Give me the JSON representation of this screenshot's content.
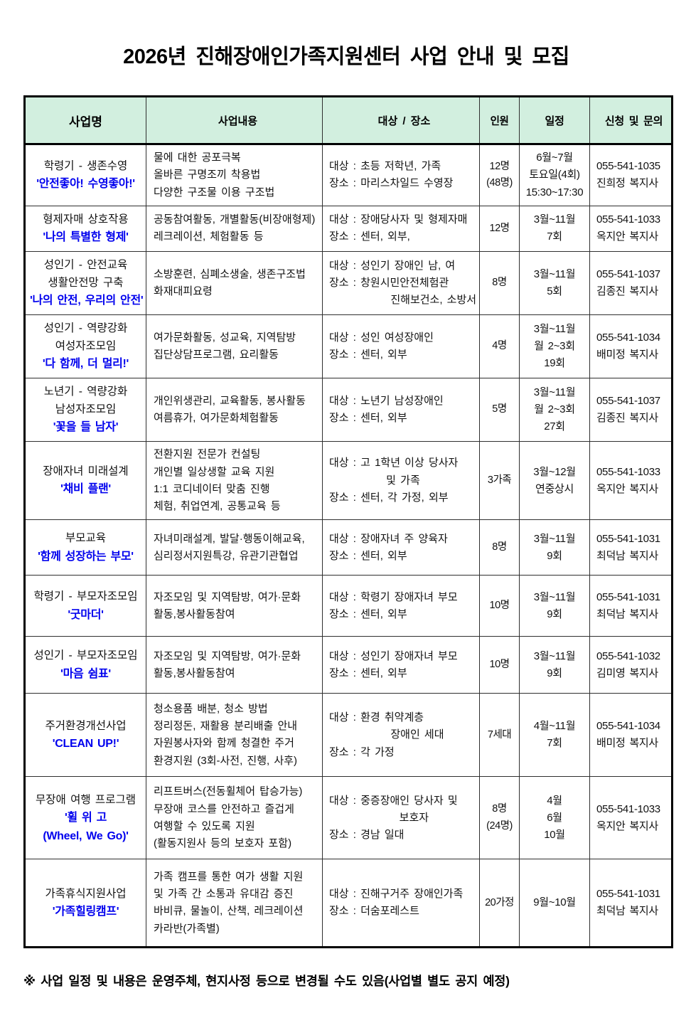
{
  "title": "2026년 진해장애인가족지원센터 사업 안내 및 모집",
  "colors": {
    "header_bg": "#d2efdf",
    "accent_blue": "#0000ee",
    "border_dark": "#000000"
  },
  "table": {
    "headers": [
      "사업명",
      "사업내용",
      "대상 / 장소",
      "인원",
      "일정",
      "신청 및 문의"
    ]
  },
  "rows": [
    {
      "name": [
        "학령기 - 생존수영"
      ],
      "slogan": [
        "'안전좋아! 수영좋아!'"
      ],
      "content": [
        "물에 대한 공포극복",
        "올바른 구명조끼 착용법",
        "다양한 구조물 이용 구조법"
      ],
      "target": [
        "대상 : 초등 저학년, 가족",
        "장소 : 마리스차일드 수영장"
      ],
      "personnel": [
        "12명",
        "(48명)"
      ],
      "schedule": [
        "6월~7월",
        "토요일(4회)",
        "15:30~17:30"
      ],
      "contact": [
        "055-541-1035",
        "진희정 복지사"
      ]
    },
    {
      "name": [
        "형제자매 상호작용"
      ],
      "slogan": [
        "'나의 특별한 형제'"
      ],
      "content": [
        "공동참여활동, 개별활동(비장애형제)",
        "레크레이션, 체험활동 등"
      ],
      "target": [
        "대상 : 장애당사자 및 형제자매",
        "장소 : 센터, 외부,"
      ],
      "personnel": [
        "12명"
      ],
      "schedule": [
        "3월~11월",
        "7회"
      ],
      "contact": [
        "055-541-1033",
        "옥지안 복지사"
      ]
    },
    {
      "name": [
        "성인기 - 안전교육",
        "생활안전망 구축"
      ],
      "slogan": [
        "'나의 안전, 우리의 안전'"
      ],
      "content": [
        "소방훈련, 심폐소생술, 생존구조법",
        "화재대피요령"
      ],
      "target": [
        "대상 : 성인기 장애인 남, 여",
        "장소 : 창원시민안전체험관",
        "              진해보건소, 소방서"
      ],
      "personnel": [
        "8명"
      ],
      "schedule": [
        "3월~11월",
        "5회"
      ],
      "contact": [
        "055-541-1037",
        "김종진 복지사"
      ]
    },
    {
      "name": [
        "성인기 - 역량강화",
        "여성자조모임"
      ],
      "slogan": [
        "'다 함께, 더 멀리!'"
      ],
      "content": [
        "여가문화활동, 성교육, 지역탐방",
        "집단상담프로그램, 요리활동"
      ],
      "target": [
        "대상 : 성인 여성장애인",
        "장소 : 센터, 외부"
      ],
      "personnel": [
        "4명"
      ],
      "schedule": [
        "3월~11월",
        "월 2~3회",
        "19회"
      ],
      "contact": [
        "055-541-1034",
        "배미정 복지사"
      ]
    },
    {
      "name": [
        "노년기 - 역량강화",
        "남성자조모임"
      ],
      "slogan": [
        "'꽃을 들 남자'"
      ],
      "content": [
        "개인위생관리, 교육활동, 봉사활동",
        "여름휴가, 여가문화체험활동"
      ],
      "target": [
        "대상 : 노년기 남성장애인",
        "장소 : 센터, 외부"
      ],
      "personnel": [
        "5명"
      ],
      "schedule": [
        "3월~11월",
        "월 2~3회",
        "27회"
      ],
      "contact": [
        "055-541-1037",
        "김종진 복지사"
      ]
    },
    {
      "name": [
        "장애자녀 미래설계"
      ],
      "slogan": [
        "'채비 플랜'"
      ],
      "content": [
        "전환지원 전문가 컨설팅",
        "개인별 일상생할 교육 지원",
        "1:1 코디네이터 맞춤 진행",
        "체험, 취업연계, 공통교육 등"
      ],
      "target": [
        "대상 : 고 1학년 이상 당사자",
        "             및 가족",
        "장소 : 센터, 각 가정, 외부"
      ],
      "personnel": [
        "3가족"
      ],
      "schedule": [
        "3월~12월",
        "연중상시"
      ],
      "contact": [
        "055-541-1033",
        "옥지안 복지사"
      ]
    },
    {
      "name": [
        "부모교육"
      ],
      "slogan": [
        "'함께 성장하는 부모'"
      ],
      "content": [
        "자녀미래설계, 발달·행동이해교육,",
        "심리정서지원특강, 유관기관협업"
      ],
      "target": [
        "대상 : 장애자녀 주 양육자",
        "장소 : 센터, 외부"
      ],
      "personnel": [
        "8명"
      ],
      "schedule": [
        "3월~11월",
        "9회"
      ],
      "contact": [
        "055-541-1031",
        "최덕남 복지사"
      ]
    },
    {
      "name": [
        "학령기 - 부모자조모임"
      ],
      "slogan": [
        "'굿마더'"
      ],
      "content": [
        "자조모임 및 지역탐방, 여가·문화",
        "활동,봉사활동참여"
      ],
      "target": [
        "대상 : 학령기 장애자녀 부모",
        "장소 : 센터, 외부"
      ],
      "personnel": [
        "10명"
      ],
      "schedule": [
        "3월~11월",
        "9회"
      ],
      "contact": [
        "055-541-1031",
        "최덕남 복지사"
      ]
    },
    {
      "name": [
        "성인기 - 부모자조모임"
      ],
      "slogan": [
        "'마음 쉼표'"
      ],
      "content": [
        "자조모임 및 지역탐방, 여가·문화",
        "활동,봉사활동참여"
      ],
      "target": [
        "대상 : 성인기 장애자녀 부모",
        "장소 : 센터, 외부"
      ],
      "personnel": [
        "10명"
      ],
      "schedule": [
        "3월~11월",
        "9회"
      ],
      "contact": [
        "055-541-1032",
        "김미영 복지사"
      ]
    },
    {
      "name": [
        "주거환경개선사업"
      ],
      "slogan": [
        "'CLEAN UP!'"
      ],
      "content": [
        "청소용품 배분, 청소 방법",
        "정리정돈, 재활용 분리배출 안내",
        "자원봉사자와 함께 청결한 주거",
        "환경지원 (3회-사전, 진행, 사후)"
      ],
      "target": [
        "대상 : 환경 취약계층",
        "              장애인 세대",
        "장소 : 각 가정"
      ],
      "personnel": [
        "7세대"
      ],
      "schedule": [
        "4월~11월",
        "7회"
      ],
      "contact": [
        "055-541-1034",
        "배미정 복지사"
      ]
    },
    {
      "name": [
        "무장애 여행 프로그램"
      ],
      "slogan": [
        "'휠 위 고",
        "(Wheel, We Go)'"
      ],
      "content": [
        "리프트버스(전동휠체어 탑승가능)",
        "무장애 코스를 안전하고 즐겁게",
        "여행할 수 있도록 지원",
        "(활동지원사 등의 보호자 포함)"
      ],
      "target": [
        "대상 : 중증장애인 당사자 및",
        "                보호자",
        "장소 : 경남 일대"
      ],
      "personnel": [
        "8명",
        "(24명)"
      ],
      "schedule": [
        "4월",
        "6월",
        "10월"
      ],
      "contact": [
        "055-541-1033",
        "옥지안 복지사"
      ]
    },
    {
      "name": [
        "가족휴식지원사업"
      ],
      "slogan": [
        "'가족힐링캠프'"
      ],
      "content": [
        "가족 캠프를 통한 여가 생활 지원",
        "및 가족 간 소통과 유대감 증진",
        "바비큐, 물놀이, 산책, 레크레이션",
        "카라반(가족별)"
      ],
      "target": [
        "대상 : 진해구거주 장애인가족",
        "장소 : 더숨포레스트"
      ],
      "personnel": [
        "20가정"
      ],
      "schedule": [
        "9월~10월"
      ],
      "contact": [
        "055-541-1031",
        "최덕남 복지사"
      ]
    }
  ],
  "footnote": "※ 사업 일정 및 내용은 운영주체, 현지사정 등으로 변경될 수도 있음(사업별 별도 공지 예정)"
}
